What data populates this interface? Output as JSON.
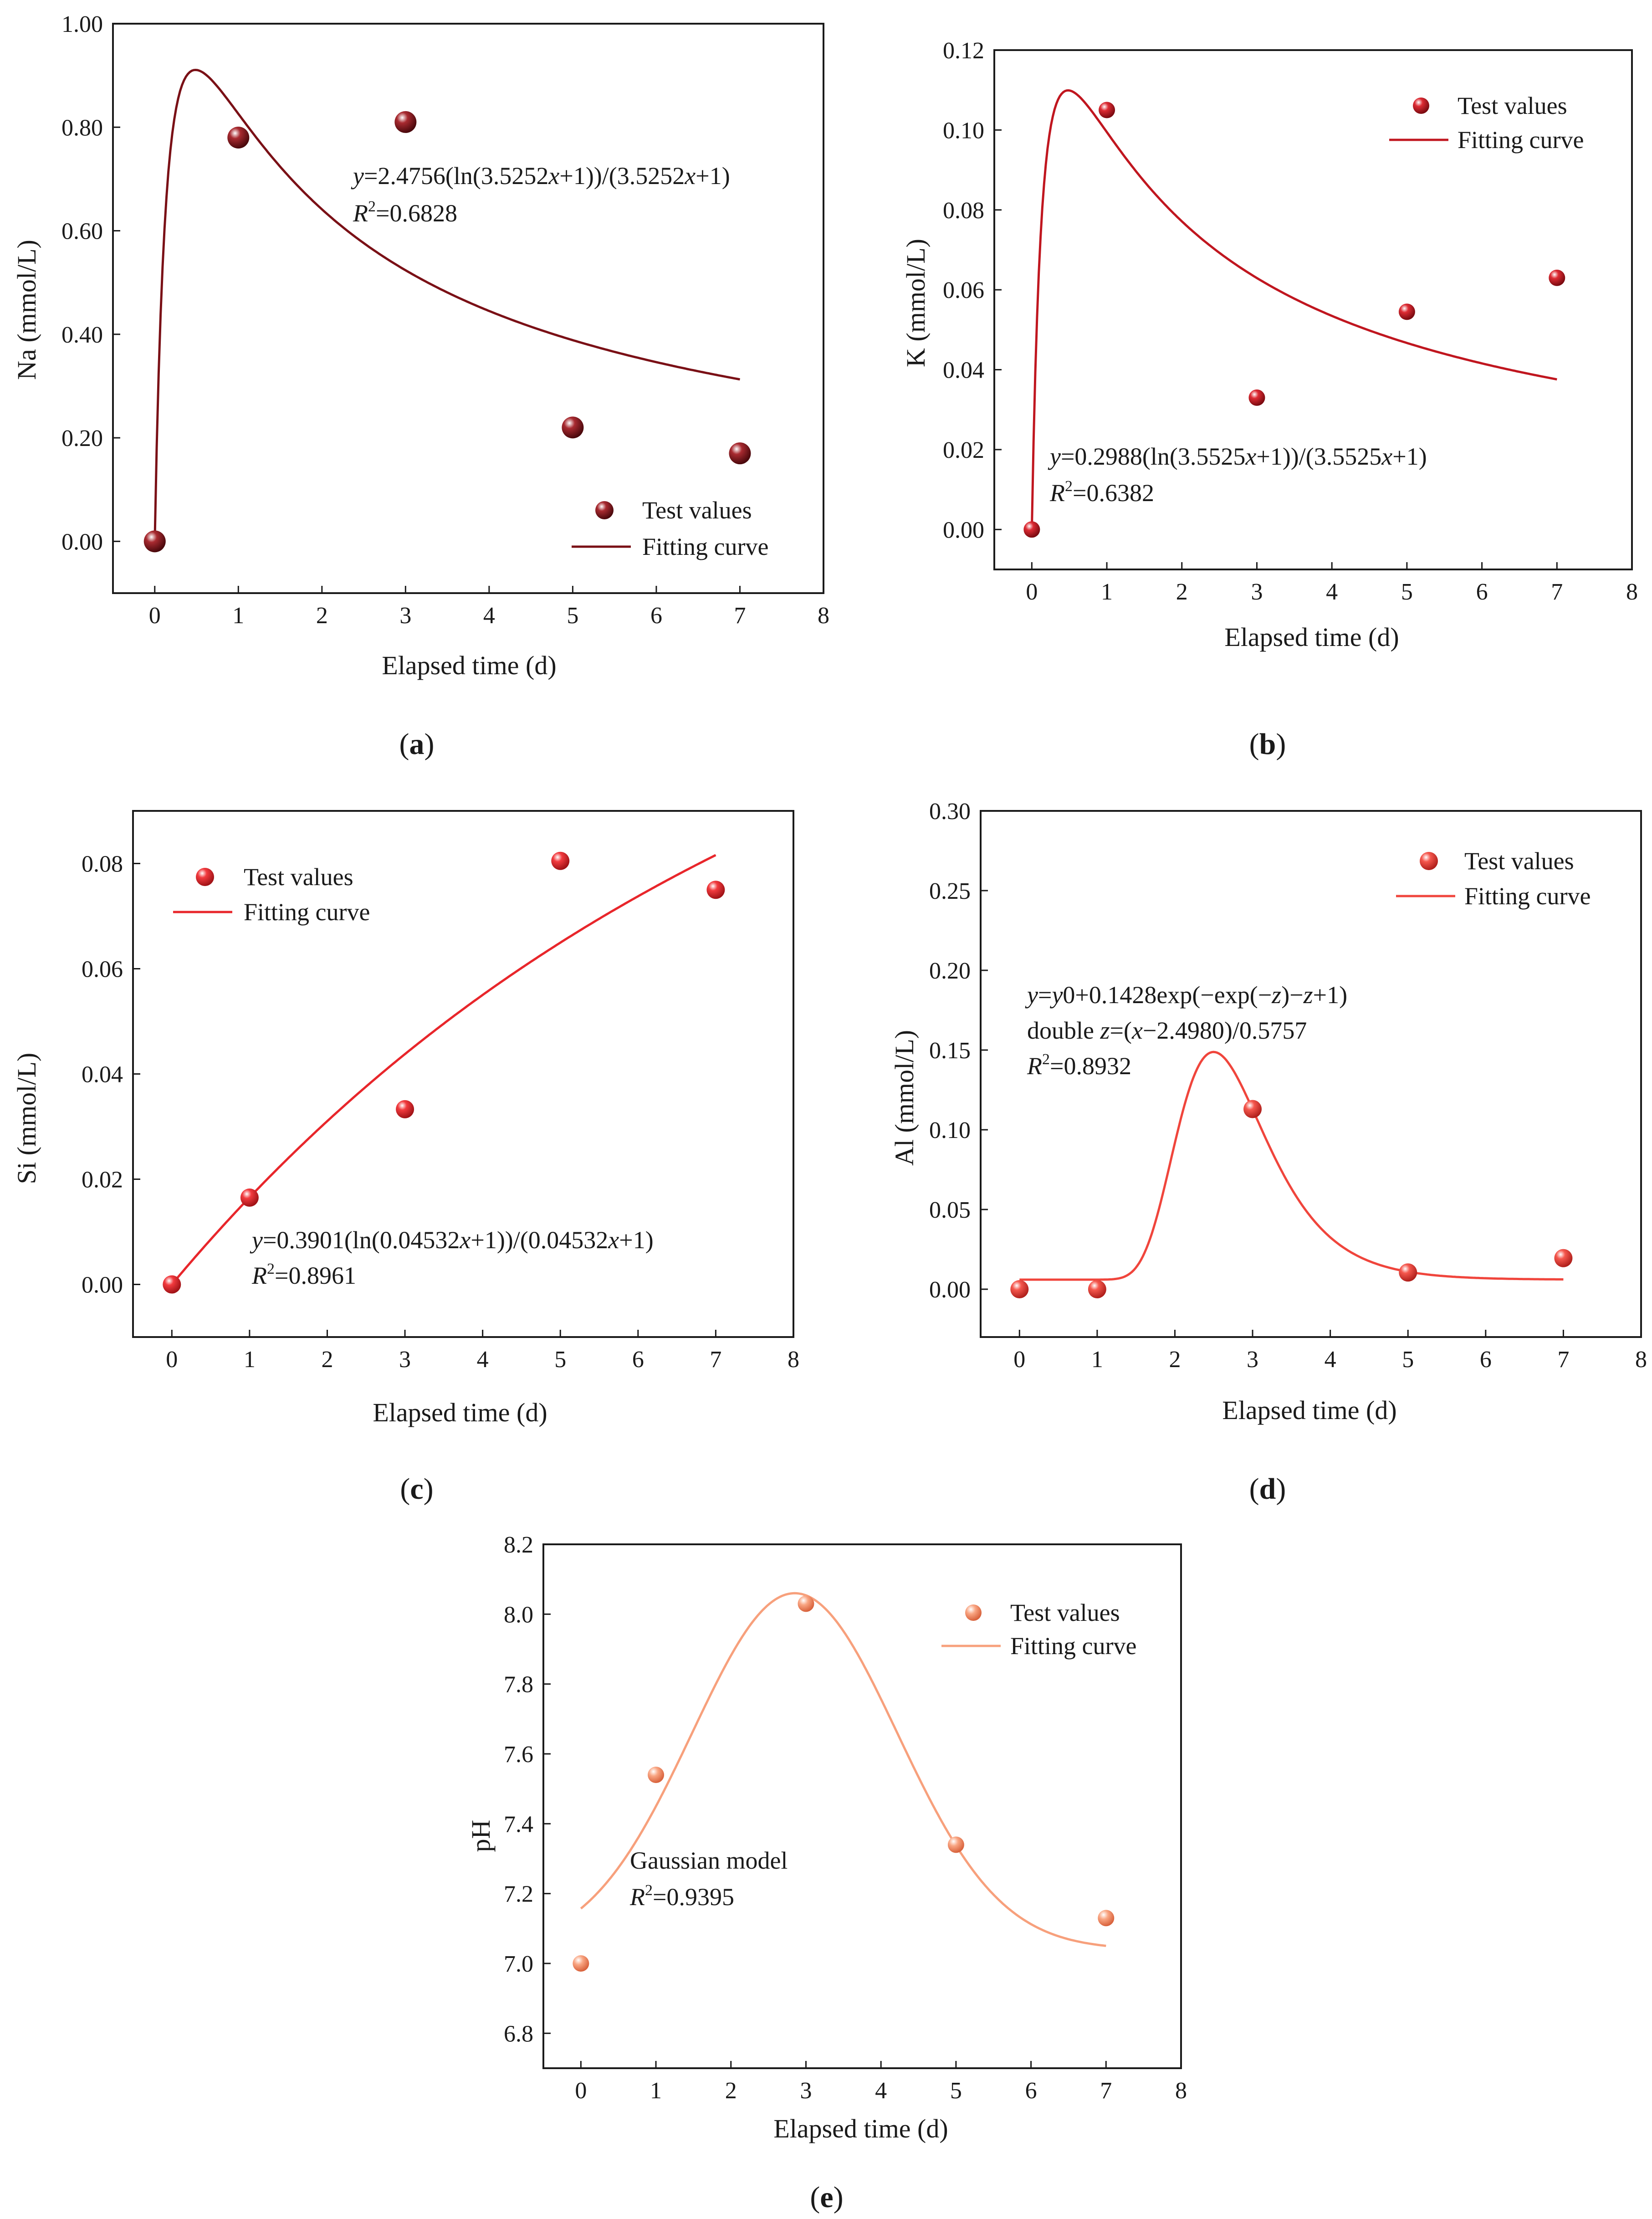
{
  "colors": {
    "a": "#7a1016",
    "b": "#c0161f",
    "c": "#e8262b",
    "d": "#f0453c",
    "e": "#f7a07c"
  },
  "chart_data": [
    {
      "id": "a",
      "type": "scatter",
      "caption": "a",
      "xlabel": "Elapsed time (d)",
      "ylabel": "Na (mmol/L)",
      "xlim": [
        -0.5,
        8
      ],
      "ylim": [
        -0.1,
        1.0
      ],
      "xticks": [
        0,
        1,
        2,
        3,
        4,
        5,
        6,
        7,
        8
      ],
      "xtick_labels": [
        "0",
        "1",
        "2",
        "3",
        "4",
        "5",
        "6",
        "7",
        "8"
      ],
      "yticks": [
        0,
        0.2,
        0.4,
        0.6,
        0.8,
        1.0
      ],
      "ytick_labels": [
        "0.00",
        "0.20",
        "0.40",
        "0.60",
        "0.80",
        "1.00"
      ],
      "series": [
        {
          "name": "Test values",
          "x": [
            0,
            1,
            3,
            5,
            7
          ],
          "y": [
            0.0,
            0.78,
            0.81,
            0.22,
            0.17
          ]
        }
      ],
      "fit": {
        "name": "Fitting curve",
        "model": "log",
        "A": 2.4756,
        "B": 3.5252,
        "x_range": [
          0,
          7
        ]
      },
      "legend": {
        "position": "bottom-right",
        "entries": [
          "Test values",
          "Fitting curve"
        ]
      },
      "annotation": {
        "equation": {
          "y": "y",
          "rest": "=2.4756(ln(3.5252",
          "x": "x",
          "tail": "+1))/(3.5252",
          "x2": "x",
          "tail2": "+1)"
        },
        "r2": {
          "R": "R",
          "sup": "2",
          "val": "=0.6828"
        }
      }
    },
    {
      "id": "b",
      "type": "scatter",
      "caption": "b",
      "xlabel": "Elapsed time (d)",
      "ylabel": "K (mmol/L)",
      "xlim": [
        -0.5,
        8
      ],
      "ylim": [
        -0.01,
        0.12
      ],
      "xticks": [
        0,
        1,
        2,
        3,
        4,
        5,
        6,
        7,
        8
      ],
      "xtick_labels": [
        "0",
        "1",
        "2",
        "3",
        "4",
        "5",
        "6",
        "7",
        "8"
      ],
      "yticks": [
        0,
        0.02,
        0.04,
        0.06,
        0.08,
        0.1,
        0.12
      ],
      "ytick_labels": [
        "0.00",
        "0.02",
        "0.04",
        "0.06",
        "0.08",
        "0.10",
        "0.12"
      ],
      "series": [
        {
          "name": "Test values",
          "x": [
            0,
            1,
            3,
            5,
            7
          ],
          "y": [
            0.0,
            0.105,
            0.033,
            0.0545,
            0.063
          ]
        }
      ],
      "fit": {
        "name": "Fitting curve",
        "model": "log",
        "A": 0.2988,
        "B": 3.5525,
        "x_range": [
          0,
          7
        ]
      },
      "legend": {
        "position": "top-right",
        "entries": [
          "Test values",
          "Fitting curve"
        ]
      },
      "annotation": {
        "equation": {
          "y": "y",
          "rest": "=0.2988(ln(3.5525",
          "x": "x",
          "tail": "+1))/(3.5525",
          "x2": "x",
          "tail2": "+1)"
        },
        "r2": {
          "R": "R",
          "sup": "2",
          "val": "=0.6382"
        }
      }
    },
    {
      "id": "c",
      "type": "scatter",
      "caption": "c",
      "xlabel": "Elapsed time (d)",
      "ylabel": "Si (mmol/L)",
      "xlim": [
        -0.5,
        8
      ],
      "ylim": [
        -0.01,
        0.09
      ],
      "xticks": [
        0,
        1,
        2,
        3,
        4,
        5,
        6,
        7,
        8
      ],
      "xtick_labels": [
        "0",
        "1",
        "2",
        "3",
        "4",
        "5",
        "6",
        "7",
        "8"
      ],
      "yticks": [
        0,
        0.02,
        0.04,
        0.06,
        0.08
      ],
      "ytick_labels": [
        "0.00",
        "0.02",
        "0.04",
        "0.06",
        "0.08"
      ],
      "series": [
        {
          "name": "Test values",
          "x": [
            0,
            1,
            3,
            5,
            7
          ],
          "y": [
            0.0,
            0.0165,
            0.0333,
            0.0805,
            0.075
          ]
        }
      ],
      "fit": {
        "name": "Fitting curve",
        "model": "log",
        "A": 0.3901,
        "B": 0.04532,
        "x_range": [
          0,
          7
        ]
      },
      "legend": {
        "position": "top-left",
        "entries": [
          "Test values",
          "Fitting curve"
        ]
      },
      "annotation": {
        "equation": {
          "y": "y",
          "rest": "=0.3901(ln(0.04532",
          "x": "x",
          "tail": "+1))/(0.04532",
          "x2": "x",
          "tail2": "+1)"
        },
        "r2": {
          "R": "R",
          "sup": "2",
          "val": "=0.8961"
        }
      }
    },
    {
      "id": "d",
      "type": "scatter",
      "caption": "d",
      "xlabel": "Elapsed time (d)",
      "ylabel": "Al (mmol/L)",
      "xlim": [
        -0.5,
        8
      ],
      "ylim": [
        -0.03,
        0.3
      ],
      "xticks": [
        0,
        1,
        2,
        3,
        4,
        5,
        6,
        7,
        8
      ],
      "xtick_labels": [
        "0",
        "1",
        "2",
        "3",
        "4",
        "5",
        "6",
        "7",
        "8"
      ],
      "yticks": [
        0,
        0.05,
        0.1,
        0.15,
        0.2,
        0.25,
        0.3
      ],
      "ytick_labels": [
        "0.00",
        "0.05",
        "0.10",
        "0.15",
        "0.20",
        "0.25",
        "0.30"
      ],
      "series": [
        {
          "name": "Test values",
          "x": [
            0,
            1,
            3,
            5,
            7
          ],
          "y": [
            0.0,
            0.0,
            0.113,
            0.0105,
            0.0195
          ]
        }
      ],
      "fit": {
        "name": "Fitting curve",
        "model": "extreme",
        "y0": 0.006,
        "A": 0.1428,
        "xc": 2.498,
        "w": 0.5757,
        "x_range": [
          0,
          7
        ]
      },
      "legend": {
        "position": "top-right",
        "entries": [
          "Test values",
          "Fitting curve"
        ]
      },
      "annotation": {
        "line1": {
          "y": "y",
          "rest": "=",
          "y0": "y",
          "rest2": "0+0.1428exp(−exp(−",
          "z": "z",
          "rest3": ")−",
          "z2": "z",
          "rest4": "+1)"
        },
        "line2": {
          "pre": "double ",
          "z": "z",
          "rest": "=(",
          "x": "x",
          "rest2": "−2.4980)/0.5757"
        },
        "r2": {
          "R": "R",
          "sup": "2",
          "val": "=0.8932"
        }
      }
    },
    {
      "id": "e",
      "type": "scatter",
      "caption": "e",
      "xlabel": "Elapsed time (d)",
      "ylabel": "pH",
      "xlim": [
        -0.5,
        8
      ],
      "ylim": [
        6.7,
        8.2
      ],
      "xticks": [
        0,
        1,
        2,
        3,
        4,
        5,
        6,
        7,
        8
      ],
      "xtick_labels": [
        "0",
        "1",
        "2",
        "3",
        "4",
        "5",
        "6",
        "7",
        "8"
      ],
      "yticks": [
        6.8,
        7.0,
        7.2,
        7.4,
        7.6,
        7.8,
        8.0,
        8.2
      ],
      "ytick_labels": [
        "6.8",
        "7.0",
        "7.2",
        "7.4",
        "7.6",
        "7.8",
        "8.0",
        "8.2"
      ],
      "series": [
        {
          "name": "Test values",
          "x": [
            0,
            1,
            3,
            5,
            7
          ],
          "y": [
            7.0,
            7.54,
            8.03,
            7.34,
            7.13
          ]
        }
      ],
      "fit": {
        "name": "Fitting curve",
        "model": "gauss",
        "y0": 7.04,
        "A": 1.02,
        "xc": 2.85,
        "s": 1.37,
        "x_range": [
          0,
          7
        ]
      },
      "legend": {
        "position": "top-right",
        "entries": [
          "Test values",
          "Fitting curve"
        ]
      },
      "annotation": {
        "model": "Gaussian model",
        "r2": {
          "R": "R",
          "sup": "2",
          "val": "=0.9395"
        }
      }
    }
  ]
}
